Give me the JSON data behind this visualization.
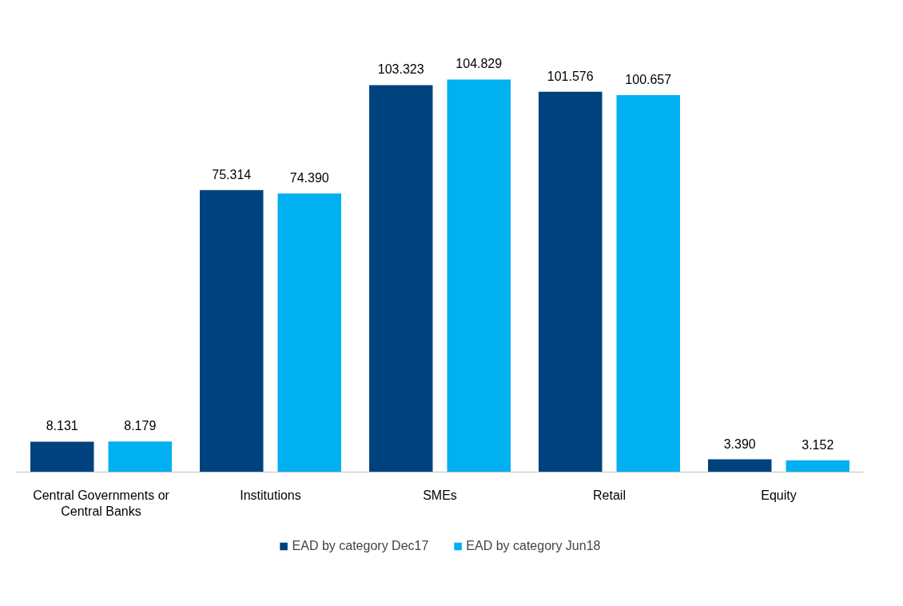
{
  "chart_data": {
    "type": "bar",
    "categories": [
      "Central Governments or Central Banks",
      "Institutions",
      "SMEs",
      "Retail",
      "Equity"
    ],
    "series": [
      {
        "name": "EAD by category Dec17",
        "color": "#00427e",
        "values": [
          8.131,
          75.314,
          103.323,
          101.576,
          3.39
        ],
        "value_labels": [
          "8.131",
          "75.314",
          "103.323",
          "101.576",
          "3.390"
        ]
      },
      {
        "name": "EAD by category Jun18",
        "color": "#00b0f0",
        "values": [
          8.179,
          74.39,
          104.829,
          100.657,
          3.152
        ],
        "value_labels": [
          "8.179",
          "74.390",
          "104.829",
          "100.657",
          "3.152"
        ]
      }
    ],
    "legend": "bottom",
    "grid": false
  }
}
